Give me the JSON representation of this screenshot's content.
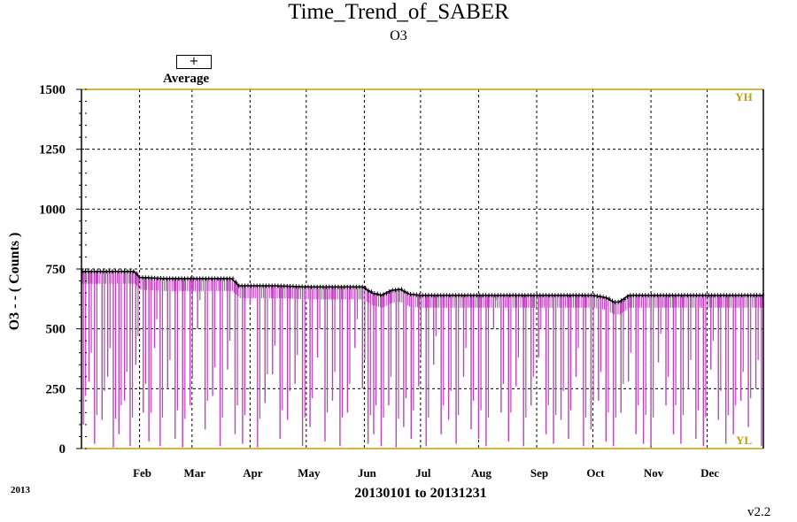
{
  "title": "Time_Trend_of_SABER",
  "subtitle": "O3",
  "legend": {
    "symbol": "+",
    "label": "Average"
  },
  "corner_year": "2013",
  "date_range_label": "20130101 to 20131231",
  "version": "v2.2",
  "colors": {
    "series": "#c040c0",
    "limit_line": "#c8a000",
    "grid": "#000000",
    "average": "#000000"
  },
  "chart_data": {
    "type": "line",
    "ylabel": "O3  -  - ( Counts )",
    "ylim": [
      0,
      1500
    ],
    "yticks": [
      "0",
      "250",
      "500",
      "750",
      "1000",
      "1250",
      "1500"
    ],
    "xlim": [
      "2013-01-01",
      "2013-12-31"
    ],
    "month_labels": [
      "Feb",
      "Mar",
      "Apr",
      "May",
      "Jun",
      "Jul",
      "Aug",
      "Sep",
      "Oct",
      "Nov",
      "Dec"
    ],
    "limits": {
      "upper": {
        "label": "YH",
        "value": 1500
      },
      "lower": {
        "label": "YL",
        "value": 0
      }
    },
    "grid": true,
    "legend_position": "top-left",
    "series": [
      {
        "name": "Average",
        "style": "plus-markers",
        "x": [
          "2013-01-01",
          "2013-01-15",
          "2013-01-29",
          "2013-02-01",
          "2013-02-15",
          "2013-03-01",
          "2013-03-15",
          "2013-03-22",
          "2013-03-26",
          "2013-04-15",
          "2013-05-01",
          "2013-05-15",
          "2013-05-31",
          "2013-06-05",
          "2013-06-10",
          "2013-06-15",
          "2013-06-20",
          "2013-06-25",
          "2013-07-01",
          "2013-07-15",
          "2013-08-01",
          "2013-08-15",
          "2013-09-01",
          "2013-09-15",
          "2013-10-01",
          "2013-10-08",
          "2013-10-12",
          "2013-10-15",
          "2013-10-20",
          "2013-10-25",
          "2013-11-01",
          "2013-11-15",
          "2013-12-01",
          "2013-12-15",
          "2013-12-31"
        ],
        "y": [
          740,
          740,
          740,
          715,
          710,
          710,
          710,
          710,
          680,
          680,
          675,
          675,
          675,
          650,
          640,
          660,
          665,
          645,
          640,
          640,
          640,
          640,
          640,
          640,
          640,
          630,
          612,
          612,
          640,
          640,
          640,
          640,
          640,
          640,
          640
        ]
      },
      {
        "name": "O3",
        "style": "vertical-dropouts",
        "x": [
          "2013-01-02",
          "2013-01-05",
          "2013-01-08",
          "2013-01-12",
          "2013-01-15",
          "2013-01-18",
          "2013-01-21",
          "2013-01-24",
          "2013-01-27",
          "2013-01-30",
          "2013-02-03",
          "2013-02-06",
          "2013-02-09",
          "2013-02-12",
          "2013-02-16",
          "2013-02-20",
          "2013-02-24",
          "2013-02-28",
          "2013-03-04",
          "2013-03-08",
          "2013-03-12",
          "2013-03-16",
          "2013-03-20",
          "2013-03-24",
          "2013-03-28",
          "2013-04-01",
          "2013-04-05",
          "2013-04-09",
          "2013-04-13",
          "2013-04-17",
          "2013-04-21",
          "2013-04-25",
          "2013-04-29",
          "2013-05-03",
          "2013-05-07",
          "2013-05-11",
          "2013-05-15",
          "2013-05-19",
          "2013-05-23",
          "2013-05-27",
          "2013-05-31",
          "2013-06-03",
          "2013-06-06",
          "2013-06-10",
          "2013-06-14",
          "2013-06-18",
          "2013-06-22",
          "2013-06-26",
          "2013-06-30",
          "2013-07-04",
          "2013-07-08",
          "2013-07-12",
          "2013-07-16",
          "2013-07-20",
          "2013-07-24",
          "2013-07-28",
          "2013-08-01",
          "2013-08-05",
          "2013-08-09",
          "2013-08-13",
          "2013-08-17",
          "2013-08-21",
          "2013-08-25",
          "2013-08-29",
          "2013-09-02",
          "2013-09-06",
          "2013-09-10",
          "2013-09-14",
          "2013-09-18",
          "2013-09-22",
          "2013-09-26",
          "2013-09-30",
          "2013-10-04",
          "2013-10-08",
          "2013-10-12",
          "2013-10-16",
          "2013-10-20",
          "2013-10-24",
          "2013-10-28",
          "2013-11-01",
          "2013-11-05",
          "2013-11-09",
          "2013-11-13",
          "2013-11-17",
          "2013-11-21",
          "2013-11-25",
          "2013-11-29",
          "2013-12-03",
          "2013-12-07",
          "2013-12-11",
          "2013-12-15",
          "2013-12-19",
          "2013-12-23",
          "2013-12-27",
          "2013-12-30"
        ],
        "y": [
          100,
          280,
          20,
          120,
          300,
          5,
          60,
          200,
          10,
          350,
          150,
          30,
          420,
          10,
          250,
          40,
          5,
          180,
          500,
          80,
          220,
          10,
          330,
          60,
          20,
          600,
          5,
          190,
          310,
          40,
          120,
          270,
          10,
          90,
          380,
          30,
          200,
          10,
          150,
          420,
          250,
          20,
          60,
          10,
          180,
          5,
          90,
          40,
          260,
          10,
          350,
          60,
          120,
          20,
          300,
          80,
          40,
          10,
          500,
          150,
          30,
          260,
          10,
          180,
          380,
          60,
          20,
          120,
          40,
          300,
          10,
          80,
          200,
          30,
          10,
          150,
          280,
          60,
          20,
          10,
          360,
          180,
          60,
          20,
          250,
          40,
          10,
          330,
          120,
          20,
          60,
          200,
          90,
          250,
          10
        ]
      }
    ]
  }
}
